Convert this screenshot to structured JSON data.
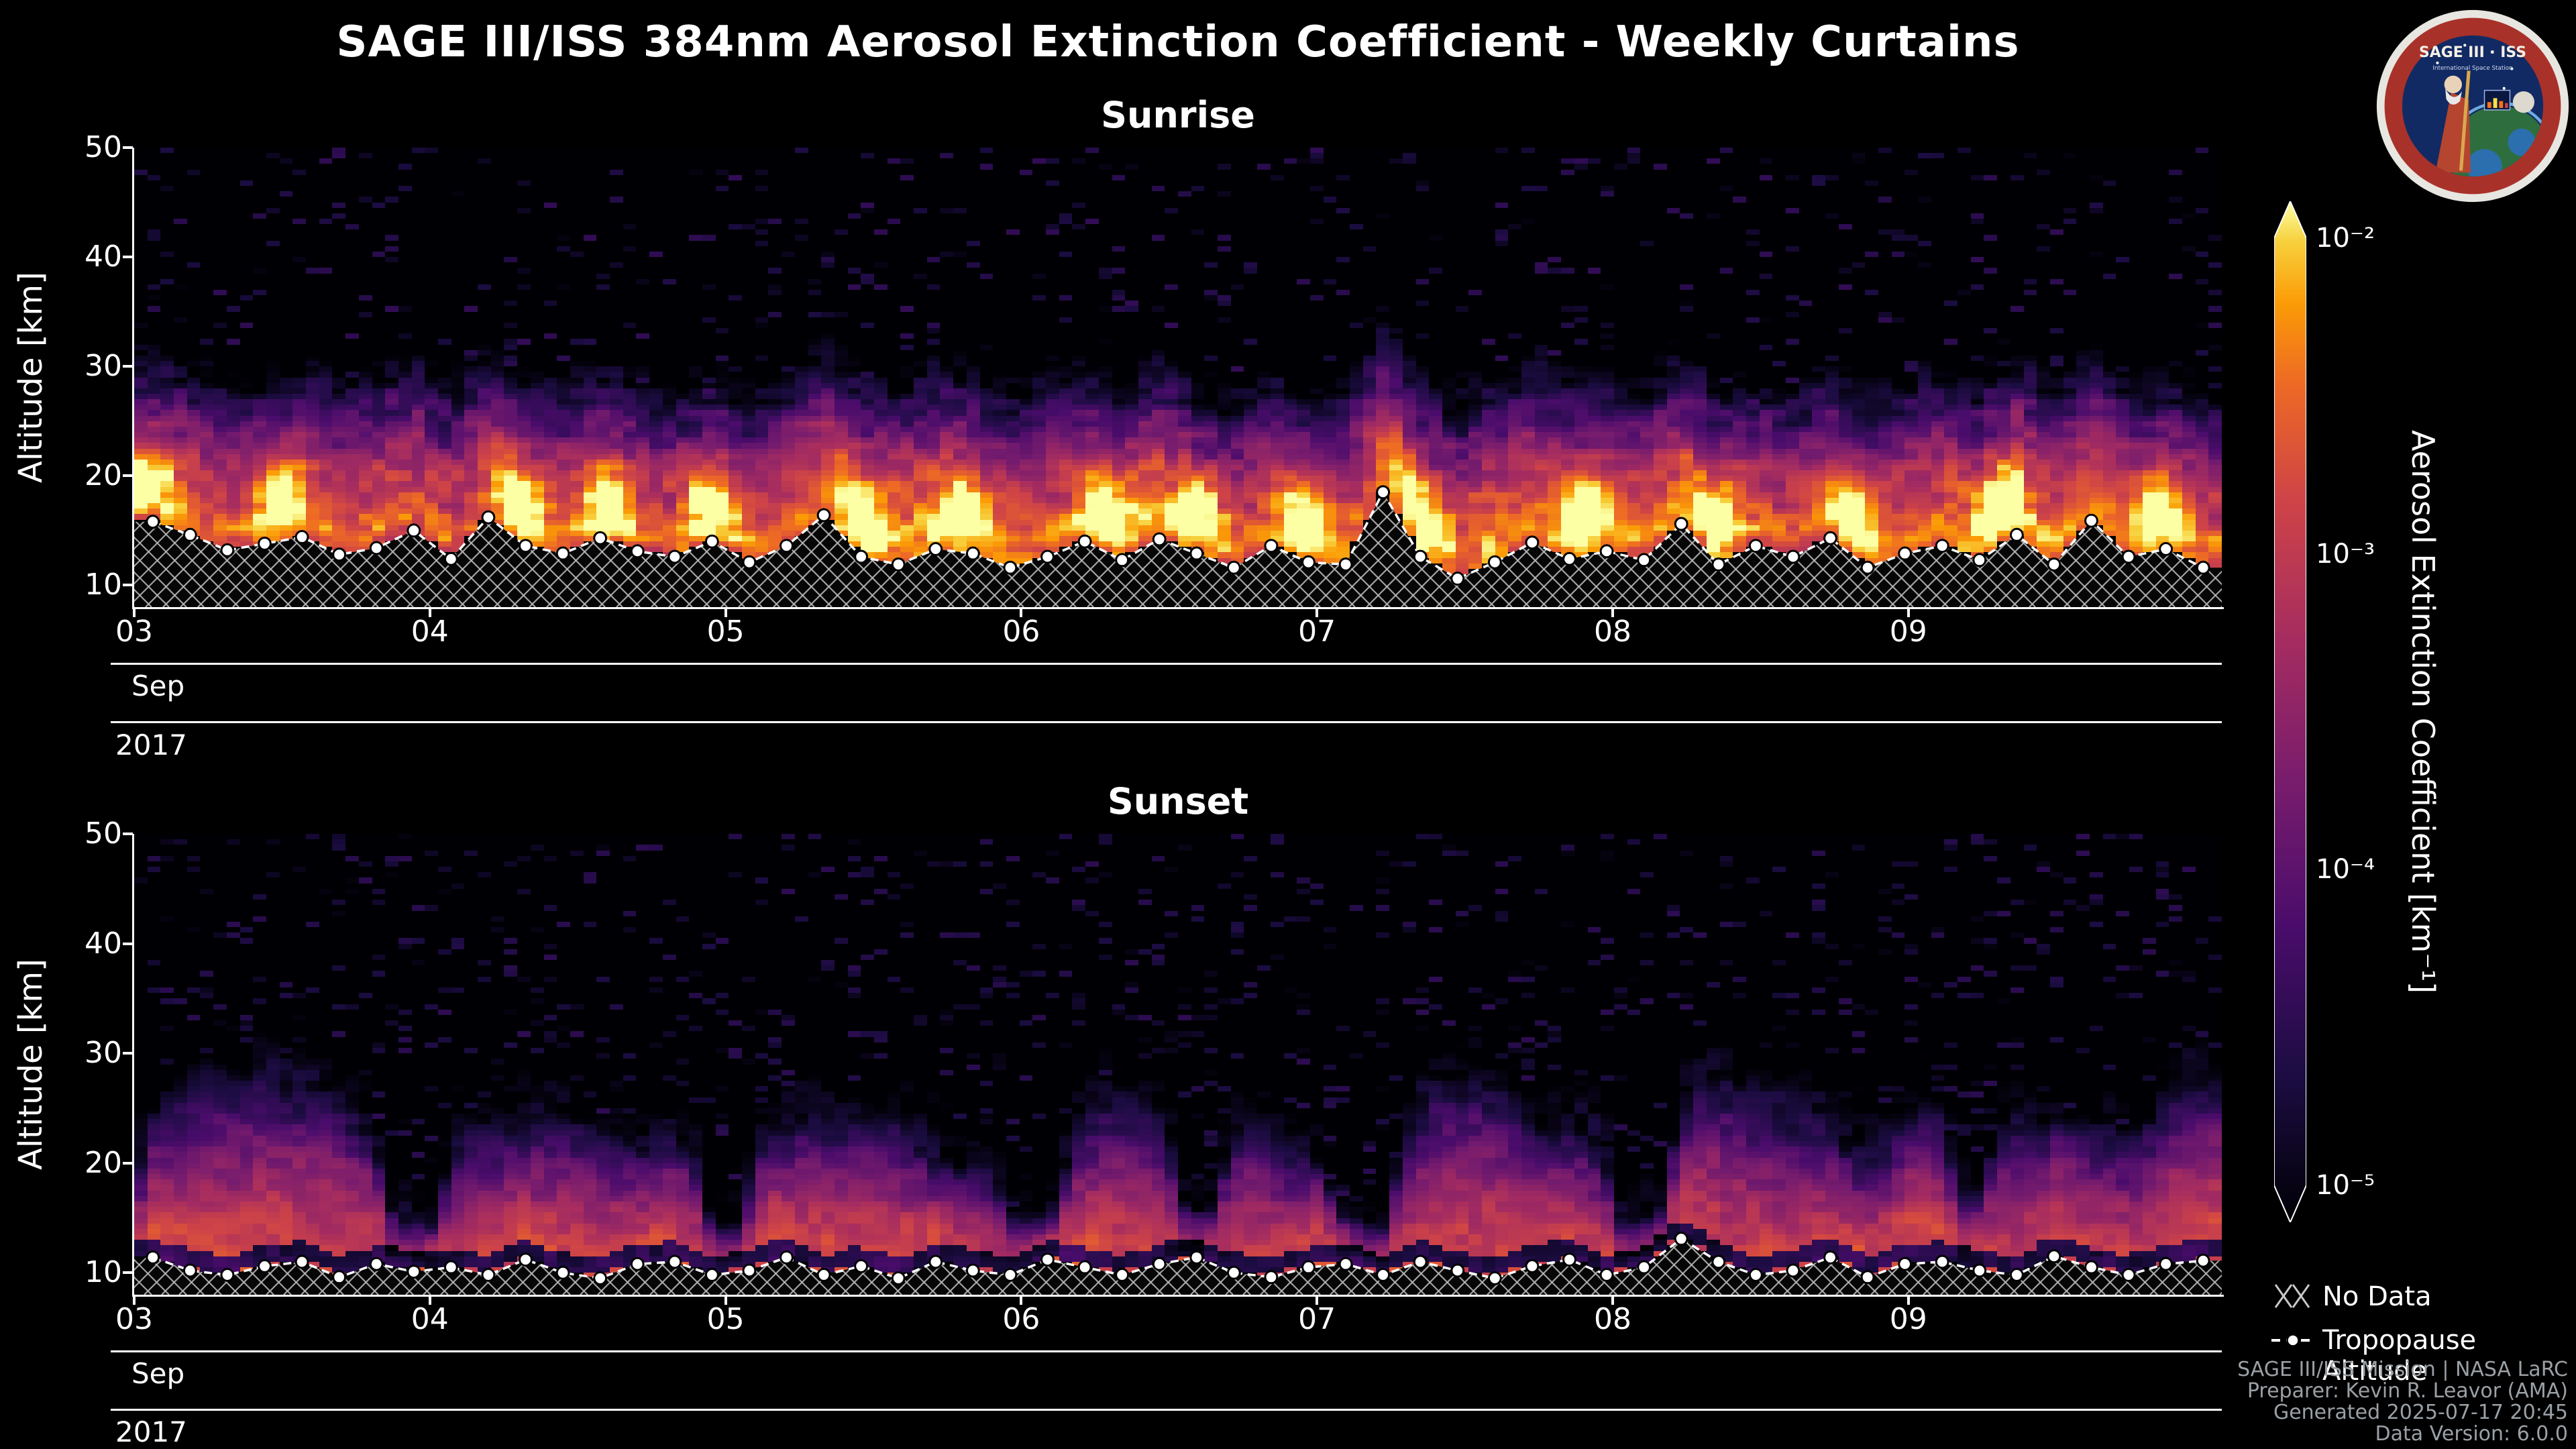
{
  "header": {
    "title": "SAGE III/ISS 384nm Aerosol Extinction Coefficient - Weekly Curtains"
  },
  "logo": {
    "title": "SAGE III · ISS",
    "subtitle": "International Space Station"
  },
  "colorbar": {
    "label": "Aerosol Extinction Coefficient [km⁻¹]",
    "scale": "log",
    "min": 1e-05,
    "max": 0.01,
    "tick_labels": [
      "10⁻²",
      "10⁻³",
      "10⁻⁴",
      "10⁻⁵"
    ],
    "colormap": "inferno",
    "stops": [
      [
        0,
        "#000004"
      ],
      [
        0.14,
        "#1b0c41"
      ],
      [
        0.29,
        "#4a0c6b"
      ],
      [
        0.43,
        "#781c6d"
      ],
      [
        0.57,
        "#a52c60"
      ],
      [
        0.71,
        "#cf4446"
      ],
      [
        0.82,
        "#ed6925"
      ],
      [
        0.9,
        "#fb9b06"
      ],
      [
        0.96,
        "#f7d03c"
      ],
      [
        1,
        "#fcffa4"
      ]
    ]
  },
  "legend": {
    "no_data": "No Data",
    "tropopause": "Tropopause Altitude"
  },
  "footer": {
    "lines": [
      "SAGE III/ISS Mission | NASA LaRC",
      "Preparer: Kevin R. Leavor (AMA)",
      "Generated 2025-07-17 20:45",
      "Data Version: 6.0.0"
    ]
  },
  "chart_data": [
    {
      "type": "heatmap",
      "title": "Sunrise",
      "ylabel": "Altitude [km]",
      "y_ticks": [
        50,
        40,
        30,
        20,
        10
      ],
      "ylim_km": [
        8,
        50
      ],
      "x_ticks": [
        "03",
        "04",
        "05",
        "06",
        "07",
        "08",
        "09"
      ],
      "x_month": "Sep",
      "x_year": "2017",
      "xlim_days": [
        3,
        10.06
      ],
      "value_units": "km⁻¹",
      "value_range": [
        1e-05,
        0.01
      ],
      "profile_summary": {
        "high_extinction_band_km": [
          12,
          22
        ],
        "typical_peak_value_km1": 0.003,
        "bright_plume_value_km1": 0.01,
        "bright_plume_days": [
          3.05,
          3.5,
          4.3,
          4.6,
          4.95,
          5.45,
          5.8,
          6.3,
          6.6,
          6.95,
          7.35,
          7.9,
          8.35,
          8.8,
          9.3,
          9.85
        ],
        "moderate_band_top_km": 30,
        "speckle_background_above_km": 32,
        "background_value_km1": 1e-05
      },
      "tropopause_altitude_km": [
        15.8,
        14.6,
        13.2,
        13.8,
        14.4,
        12.8,
        13.4,
        15.0,
        12.4,
        16.2,
        13.6,
        12.9,
        14.3,
        13.1,
        12.6,
        14.0,
        12.1,
        13.6,
        16.4,
        12.6,
        11.9,
        13.3,
        12.9,
        11.6,
        12.6,
        14.0,
        12.3,
        14.2,
        12.9,
        11.6,
        13.6,
        12.1,
        11.9,
        18.5,
        12.6,
        10.6,
        12.1,
        13.9,
        12.4,
        13.1,
        12.3,
        15.6,
        11.9,
        13.6,
        12.6,
        14.3,
        11.6,
        12.9,
        13.6,
        12.3,
        14.6,
        11.9,
        15.9,
        12.6,
        13.3,
        11.6
      ]
    },
    {
      "type": "heatmap",
      "title": "Sunset",
      "ylabel": "Altitude [km]",
      "y_ticks": [
        50,
        40,
        30,
        20,
        10
      ],
      "ylim_km": [
        8,
        50
      ],
      "x_ticks": [
        "03",
        "04",
        "05",
        "06",
        "07",
        "08",
        "09"
      ],
      "x_month": "Sep",
      "x_year": "2017",
      "xlim_days": [
        3,
        10.06
      ],
      "value_units": "km⁻¹",
      "value_range": [
        1e-05,
        0.01
      ],
      "profile_summary": {
        "high_extinction_band_km": [
          11,
          20
        ],
        "typical_peak_value_km1": 0.002,
        "purple_haze_top_km": [
          26,
          32
        ],
        "dark_notch_days": [
          3.95,
          5.0,
          6.05,
          6.6,
          7.15,
          8.1,
          9.2
        ],
        "background_value_km1": 1e-05
      },
      "tropopause_altitude_km": [
        11.4,
        10.2,
        9.8,
        10.6,
        11.0,
        9.6,
        10.8,
        10.1,
        10.5,
        9.8,
        11.2,
        10.0,
        9.5,
        10.8,
        11.0,
        9.8,
        10.2,
        11.4,
        9.8,
        10.6,
        9.5,
        11.0,
        10.2,
        9.8,
        11.2,
        10.5,
        9.8,
        10.8,
        11.4,
        10.0,
        9.6,
        10.5,
        10.8,
        9.8,
        11.0,
        10.2,
        9.5,
        10.6,
        11.2,
        9.8,
        10.5,
        13.1,
        11.0,
        9.8,
        10.2,
        11.4,
        9.6,
        10.8,
        11.0,
        10.2,
        9.8,
        11.5,
        10.5,
        9.8,
        10.8,
        11.1
      ]
    }
  ]
}
